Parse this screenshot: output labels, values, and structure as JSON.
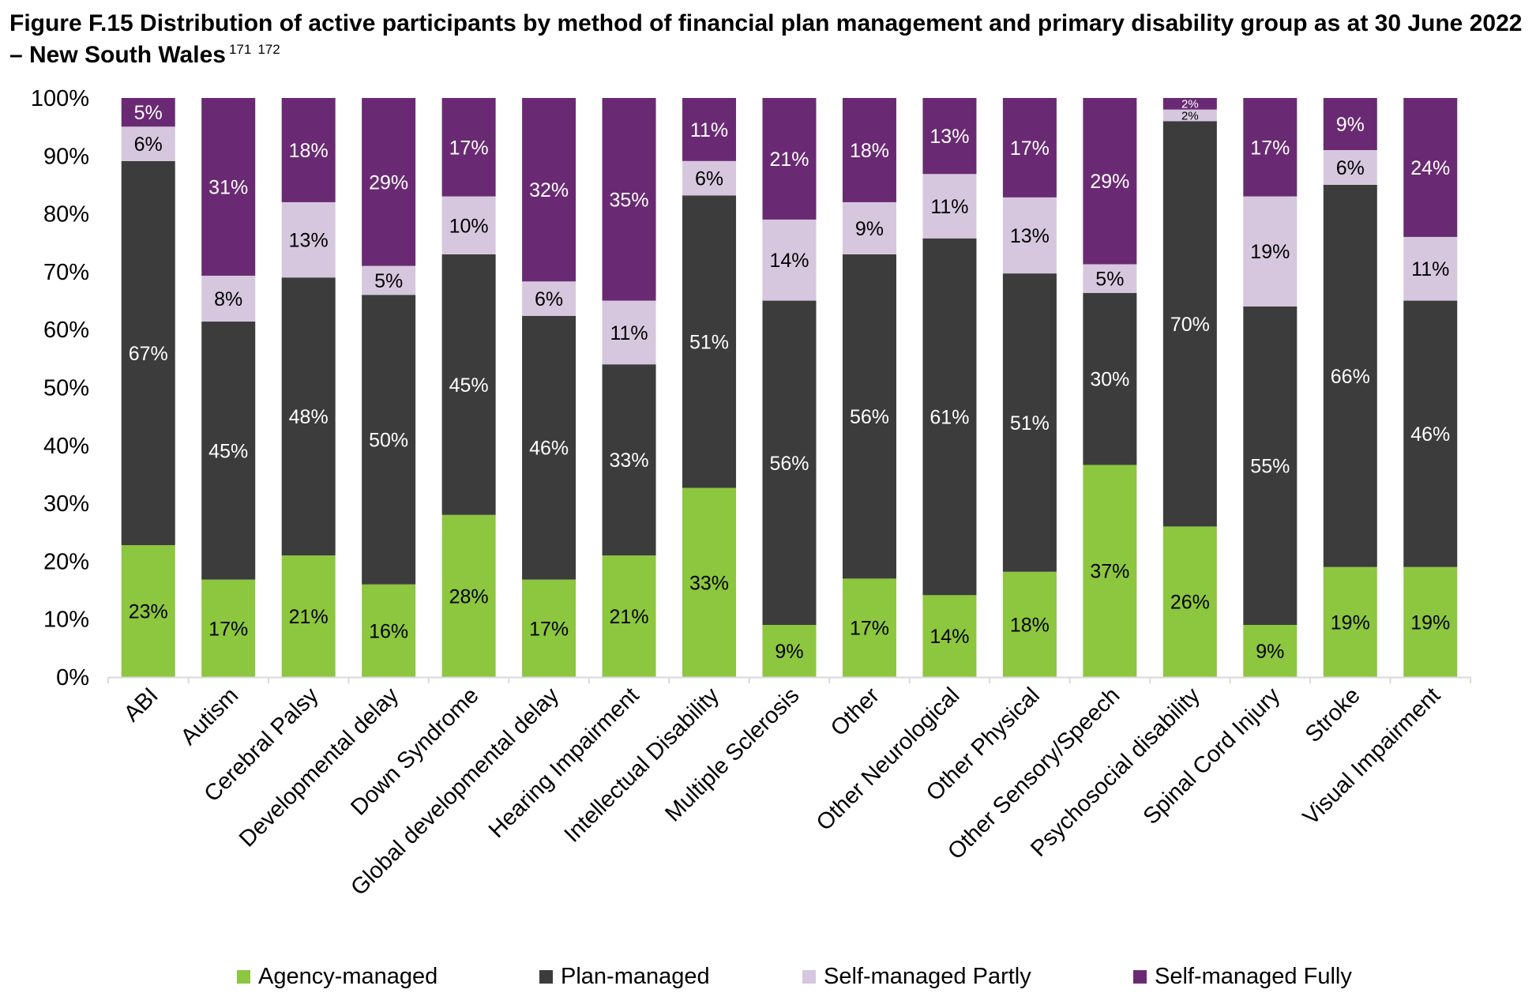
{
  "figure": {
    "title": "Figure F.15 Distribution of active participants by method of financial plan management and primary disability group as at 30 June 2022 – New South Wales",
    "footnote_refs": [
      "171",
      "172"
    ]
  },
  "chart_data": {
    "type": "bar",
    "stacked": true,
    "ylim": [
      0,
      100
    ],
    "yticks": [
      "0%",
      "10%",
      "20%",
      "30%",
      "40%",
      "50%",
      "60%",
      "70%",
      "80%",
      "90%",
      "100%"
    ],
    "grid": false,
    "legend_position": "bottom",
    "categories": [
      "ABI",
      "Autism",
      "Cerebral Palsy",
      "Developmental delay",
      "Down Syndrome",
      "Global developmental delay",
      "Hearing Impairment",
      "Intellectual Disability",
      "Multiple Sclerosis",
      "Other",
      "Other Neurological",
      "Other Physical",
      "Other Sensory/Speech",
      "Psychosocial disability",
      "Spinal Cord Injury",
      "Stroke",
      "Visual Impairment"
    ],
    "series": [
      {
        "name": "Agency-managed",
        "color": "#8dc63f",
        "label_color": "#000000",
        "values": [
          23,
          17,
          21,
          16,
          28,
          17,
          21,
          33,
          9,
          17,
          14,
          18,
          37,
          26,
          9,
          19,
          19
        ],
        "labels": [
          "23%",
          "17%",
          "21%",
          "16%",
          "28%",
          "17%",
          "21%",
          "33%",
          "9%",
          "17%",
          "14%",
          "18%",
          "37%",
          "26%",
          "9%",
          "19%",
          "19%"
        ]
      },
      {
        "name": "Plan-managed",
        "color": "#3c3c3c",
        "label_color": "#ffffff",
        "values": [
          67,
          45,
          48,
          50,
          45,
          46,
          33,
          51,
          56,
          56,
          61,
          51,
          30,
          70,
          55,
          66,
          46
        ],
        "labels": [
          "67%",
          "45%",
          "48%",
          "50%",
          "45%",
          "46%",
          "33%",
          "51%",
          "56%",
          "56%",
          "61%",
          "51%",
          "30%",
          "70%",
          "55%",
          "66%",
          "46%"
        ]
      },
      {
        "name": "Self-managed Partly",
        "color": "#d6c7de",
        "label_color": "#000000",
        "values": [
          6,
          8,
          13,
          5,
          10,
          6,
          11,
          6,
          14,
          9,
          11,
          13,
          5,
          2,
          19,
          6,
          11
        ],
        "labels": [
          "6%",
          "8%",
          "13%",
          "5%",
          "10%",
          "6%",
          "11%",
          "6%",
          "14%",
          "9%",
          "11%",
          "13%",
          "5%",
          "2%",
          "19%",
          "6%",
          "11%"
        ]
      },
      {
        "name": "Self-managed Fully",
        "color": "#6a2a73",
        "label_color": "#ffffff",
        "values": [
          5,
          31,
          18,
          29,
          17,
          32,
          35,
          11,
          21,
          18,
          13,
          17,
          29,
          2,
          17,
          9,
          24
        ],
        "labels": [
          "5%",
          "31%",
          "18%",
          "29%",
          "17%",
          "32%",
          "35%",
          "11%",
          "21%",
          "18%",
          "13%",
          "17%",
          "29%",
          "2%",
          "17%",
          "9%",
          "24%"
        ]
      }
    ]
  }
}
